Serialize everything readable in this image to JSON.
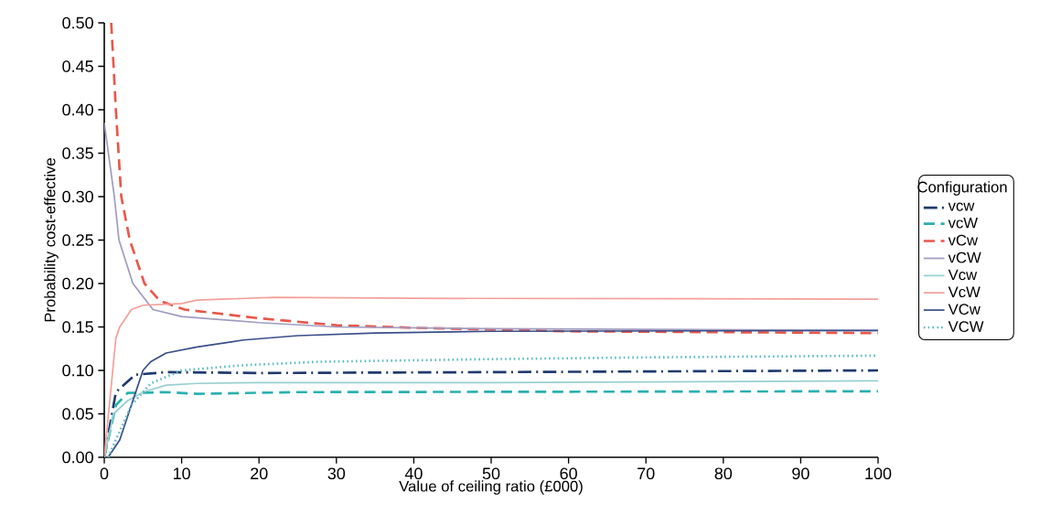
{
  "chart_data": {
    "type": "line",
    "xlabel": "Value of ceiling ratio (£000)",
    "ylabel": "Probability cost-effective",
    "legend_title": "Configuration",
    "legend": "right",
    "grid": false,
    "marker": "none",
    "xlim": [
      0,
      100
    ],
    "ylim": [
      0,
      0.5
    ],
    "xticks": [
      0,
      10,
      20,
      30,
      40,
      50,
      60,
      70,
      80,
      90,
      100
    ],
    "yticks": [
      {
        "value": 0,
        "label": "0.00"
      },
      {
        "value": 0.05,
        "label": "0.05"
      },
      {
        "value": 0.1,
        "label": "0.10"
      },
      {
        "value": 0.15,
        "label": "0.15"
      },
      {
        "value": 0.2,
        "label": "0.20"
      },
      {
        "value": 0.25,
        "label": "0.25"
      },
      {
        "value": 0.3,
        "label": "0.30"
      },
      {
        "value": 0.35,
        "label": "0.35"
      },
      {
        "value": 0.4,
        "label": "0.40"
      },
      {
        "value": 0.45,
        "label": "0.45"
      },
      {
        "value": 0.5,
        "label": "0.50"
      }
    ],
    "series": [
      {
        "name": "vcw",
        "color": "#1f3a6e",
        "line_style": "dashdot",
        "x": [
          0,
          1.5,
          4,
          8,
          20,
          50,
          100
        ],
        "values": [
          0,
          0.075,
          0.095,
          0.098,
          0.097,
          0.098,
          0.1
        ]
      },
      {
        "name": "vcW",
        "color": "#2ab0b0",
        "line_style": "dashed",
        "x": [
          0,
          1.5,
          3,
          8,
          12,
          25,
          100
        ],
        "values": [
          0,
          0.06,
          0.074,
          0.075,
          0.073,
          0.075,
          0.076
        ]
      },
      {
        "name": "vCw",
        "color": "#e8574a",
        "line_style": "dashed",
        "x": [
          0.9,
          1.5,
          2.2,
          3.3,
          5.2,
          7.2,
          10.4,
          20,
          30,
          40,
          50,
          60,
          80,
          100
        ],
        "values": [
          0.5,
          0.4,
          0.3,
          0.25,
          0.2,
          0.18,
          0.17,
          0.16,
          0.152,
          0.149,
          0.147,
          0.145,
          0.144,
          0.143
        ]
      },
      {
        "name": "vCW",
        "color": "#a09cc0",
        "line_style": "solid",
        "x": [
          0,
          1.3,
          1.9,
          3.7,
          6.3,
          10,
          20,
          30,
          50,
          100
        ],
        "values": [
          0.385,
          0.3,
          0.25,
          0.2,
          0.17,
          0.162,
          0.155,
          0.15,
          0.148,
          0.146
        ]
      },
      {
        "name": "Vcw",
        "color": "#98cfd0",
        "line_style": "solid",
        "x": [
          0,
          1.2,
          3,
          5,
          8,
          12,
          20,
          50,
          100
        ],
        "values": [
          0,
          0.05,
          0.065,
          0.075,
          0.083,
          0.085,
          0.086,
          0.086,
          0.088
        ]
      },
      {
        "name": "VcW",
        "color": "#f4a09a",
        "line_style": "solid",
        "x": [
          0,
          1.5,
          2,
          3.5,
          5,
          10,
          12,
          22,
          40,
          100
        ],
        "values": [
          0,
          0.137,
          0.15,
          0.17,
          0.175,
          0.177,
          0.181,
          0.184,
          0.183,
          0.182
        ]
      },
      {
        "name": "VCw",
        "color": "#3a4f8a",
        "line_style": "solid",
        "x": [
          0.5,
          2,
          3.5,
          5,
          6,
          8,
          12,
          18,
          25,
          35,
          50,
          100
        ],
        "values": [
          0,
          0.02,
          0.06,
          0.1,
          0.11,
          0.12,
          0.127,
          0.135,
          0.14,
          0.143,
          0.145,
          0.146
        ]
      },
      {
        "name": "VCW",
        "color": "#5bbcc4",
        "line_style": "dotted",
        "x": [
          0.5,
          2,
          3.5,
          6,
          10,
          18,
          28,
          50,
          70,
          100
        ],
        "values": [
          0,
          0.03,
          0.06,
          0.085,
          0.1,
          0.106,
          0.11,
          0.113,
          0.115,
          0.117
        ]
      }
    ]
  }
}
